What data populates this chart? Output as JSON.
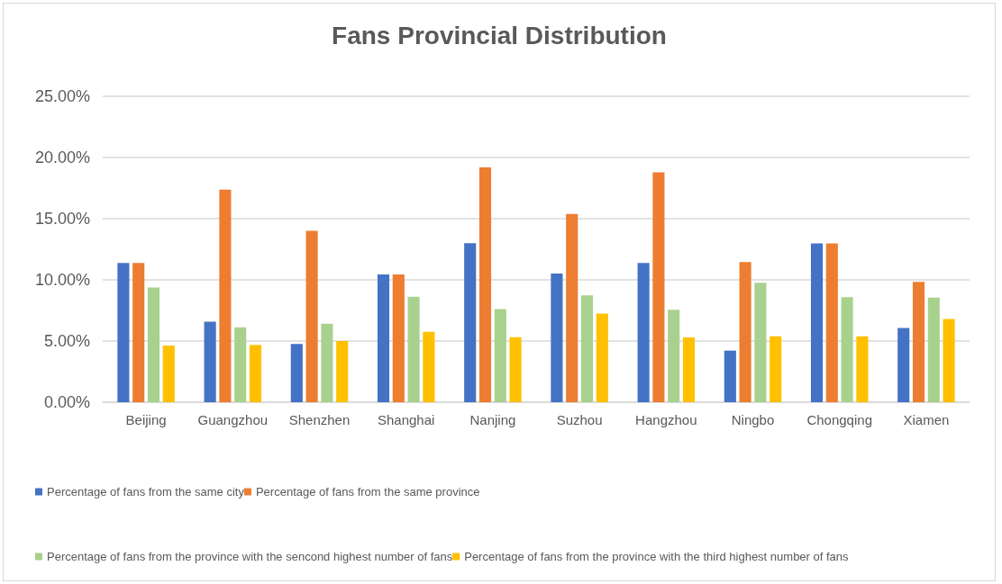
{
  "chart_data": {
    "type": "bar",
    "title": "Fans Provincial Distribution",
    "categories": [
      "Beijing",
      "Guangzhou",
      "Shenzhen",
      "Shanghai",
      "Nanjing",
      "Suzhou",
      "Hangzhou",
      "Ningbo",
      "Chongqing",
      "Xiamen"
    ],
    "series": [
      {
        "name": "Percentage of fans from the same city",
        "color": "#4472c4",
        "values": [
          11.37,
          6.59,
          4.76,
          10.44,
          13.0,
          10.51,
          11.37,
          4.22,
          12.98,
          6.07
        ]
      },
      {
        "name": "Percentage of fans from the same province",
        "color": "#ed7d31",
        "values": [
          11.37,
          17.37,
          14.0,
          10.44,
          19.2,
          15.39,
          18.78,
          11.46,
          12.98,
          9.83
        ]
      },
      {
        "name": "Percentage of fans from the province with the sencond highest number of fans",
        "color": "#a9d18e",
        "values": [
          9.37,
          6.12,
          6.41,
          8.63,
          7.61,
          8.73,
          7.56,
          9.76,
          8.59,
          8.54
        ]
      },
      {
        "name": "Percentage of fans from the province with the third highest number of fans",
        "color": "#ffc000",
        "values": [
          4.63,
          4.68,
          5.0,
          5.76,
          5.32,
          7.24,
          5.29,
          5.39,
          5.39,
          6.8
        ]
      }
    ],
    "ylim": [
      0,
      25
    ],
    "yticks": [
      {
        "value": 0,
        "label": "0.00%"
      },
      {
        "value": 5,
        "label": "5.00%"
      },
      {
        "value": 10,
        "label": "10.00%"
      },
      {
        "value": 15,
        "label": "15.00%"
      },
      {
        "value": 20,
        "label": "20.00%"
      },
      {
        "value": 25,
        "label": "25.00%"
      }
    ],
    "grid": "y",
    "legend": "bottom"
  }
}
